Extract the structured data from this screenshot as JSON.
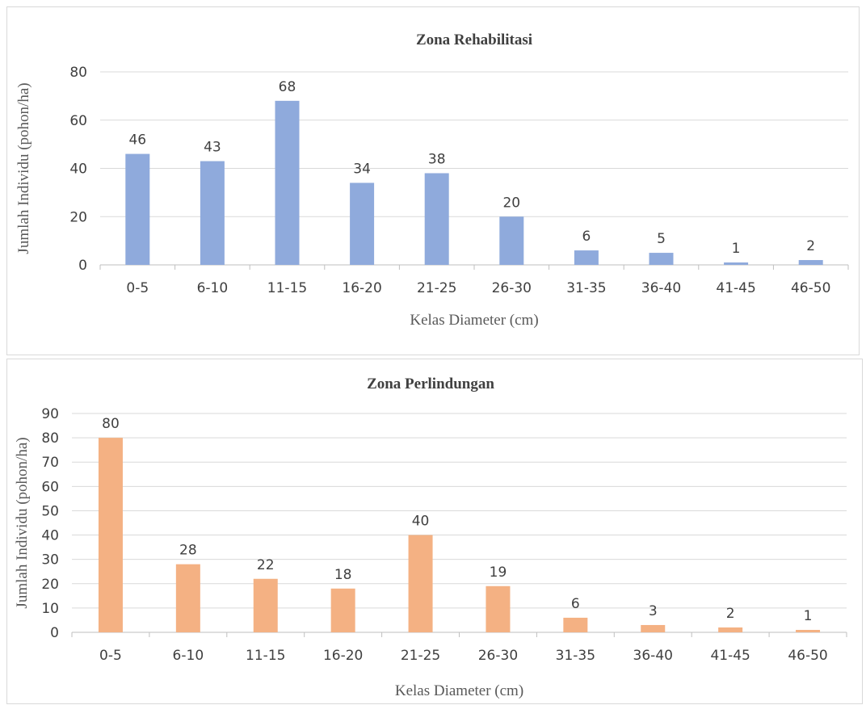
{
  "chart_data": [
    {
      "type": "bar",
      "title": "Zona Rehabilitasi",
      "xlabel": "Kelas Diameter (cm)",
      "ylabel": "Jumlah Individu (pohon/ha)",
      "categories": [
        "0-5",
        "6-10",
        "11-15",
        "16-20",
        "21-25",
        "26-30",
        "31-35",
        "36-40",
        "41-45",
        "46-50"
      ],
      "values": [
        46,
        43,
        68,
        34,
        38,
        20,
        6,
        5,
        1,
        2
      ],
      "ylim": [
        0,
        80
      ],
      "yticks": [
        0,
        20,
        40,
        60,
        80
      ],
      "color": "#8faadc",
      "grid": true
    },
    {
      "type": "bar",
      "title": "Zona Perlindungan",
      "xlabel": "Kelas Diameter (cm)",
      "ylabel": "Jumlah Individu (pohon/ha)",
      "categories": [
        "0-5",
        "6-10",
        "11-15",
        "16-20",
        "21-25",
        "26-30",
        "31-35",
        "36-40",
        "41-45",
        "46-50"
      ],
      "values": [
        80,
        28,
        22,
        18,
        40,
        19,
        6,
        3,
        2,
        1
      ],
      "ylim": [
        0,
        90
      ],
      "yticks": [
        0,
        10,
        20,
        30,
        40,
        50,
        60,
        70,
        80,
        90
      ],
      "color": "#f4b183",
      "grid": true
    }
  ]
}
